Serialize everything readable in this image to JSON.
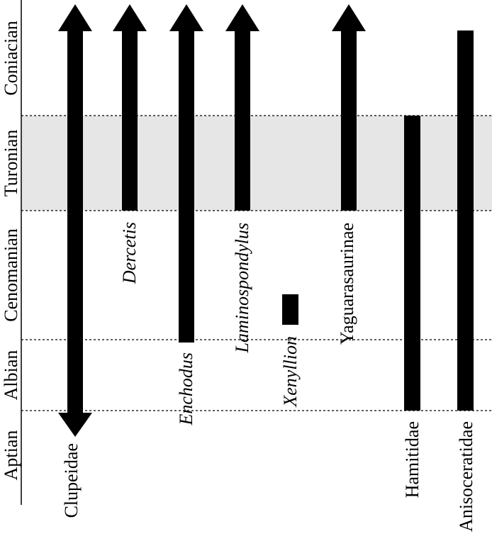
{
  "stages": [
    "Aptian",
    "Albian",
    "Cenomanian",
    "Turonian",
    "Coniacian"
  ],
  "taxa": [
    {
      "name": "Clupeidae",
      "italic": false,
      "from": "Aptian",
      "to": "Coniacian",
      "arrow_bottom": true,
      "arrow_top": true
    },
    {
      "name": "Dercetis",
      "italic": true,
      "from": "Turonian",
      "to": "Coniacian",
      "arrow_bottom": false,
      "arrow_top": true
    },
    {
      "name": "Enchodus",
      "italic": true,
      "from": "Cenomanian",
      "to": "Coniacian",
      "arrow_bottom": false,
      "arrow_top": true
    },
    {
      "name": "Laminospondylus",
      "italic": true,
      "from": "Turonian",
      "to": "Coniacian",
      "arrow_bottom": false,
      "arrow_top": true
    },
    {
      "name": "Xenyllion",
      "italic": true,
      "from": "Cenomanian",
      "to": "Cenomanian",
      "arrow_bottom": false,
      "arrow_top": false
    },
    {
      "name": "Yaguarasaurinae",
      "italic": false,
      "from": "Turonian",
      "to": "Coniacian",
      "arrow_bottom": false,
      "arrow_top": true
    },
    {
      "name": "Hamitidae",
      "italic": false,
      "from": "Albian",
      "to": "Turonian",
      "arrow_bottom": false,
      "arrow_top": false
    },
    {
      "name": "Anisoceratidae",
      "italic": false,
      "from": "Albian",
      "to": "Coniacian",
      "arrow_bottom": false,
      "arrow_top": false
    }
  ],
  "highlighted_stage": "Turonian",
  "colors": {
    "bar": "#000000",
    "highlight": "#e6e6e6",
    "line": "#000000"
  }
}
